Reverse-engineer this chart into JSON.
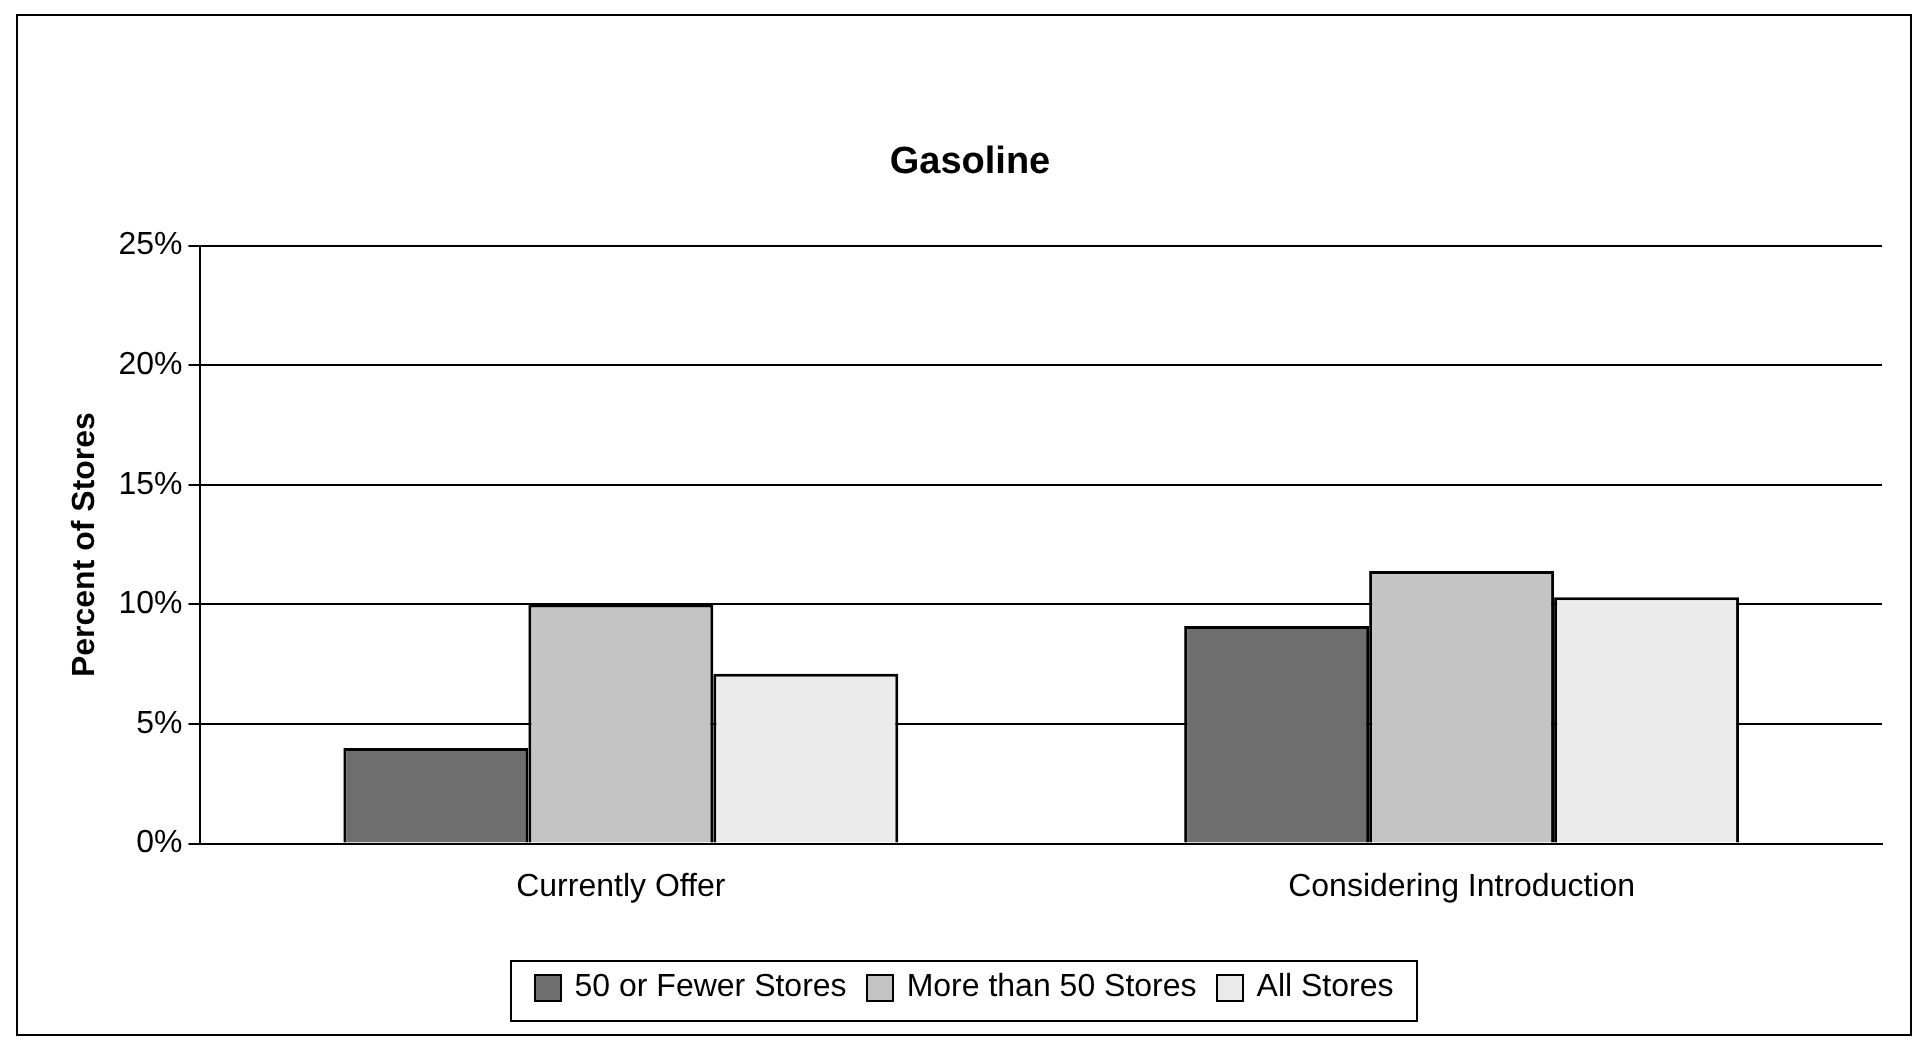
{
  "chart_data": {
    "type": "bar",
    "title": "Gasoline",
    "ylabel": "Percent of Stores",
    "categories": [
      "Currently Offer",
      "Considering Introduction"
    ],
    "series": [
      {
        "name": "50 or Fewer Stores",
        "color": "#6e6e6e",
        "values": [
          4,
          9.1
        ]
      },
      {
        "name": "More than 50 Stores",
        "color": "#c4c4c4",
        "values": [
          10,
          11.4
        ]
      },
      {
        "name": "All Stores",
        "color": "#ebebeb",
        "values": [
          7.1,
          10.3
        ]
      }
    ],
    "ylim": [
      0,
      25
    ],
    "yticks": [
      {
        "value": 0,
        "label": "0%"
      },
      {
        "value": 5,
        "label": "5%"
      },
      {
        "value": 10,
        "label": "10%"
      },
      {
        "value": 15,
        "label": "15%"
      },
      {
        "value": 20,
        "label": "20%"
      },
      {
        "value": 25,
        "label": "25%"
      }
    ],
    "grid": "y",
    "legend": "bottom"
  }
}
